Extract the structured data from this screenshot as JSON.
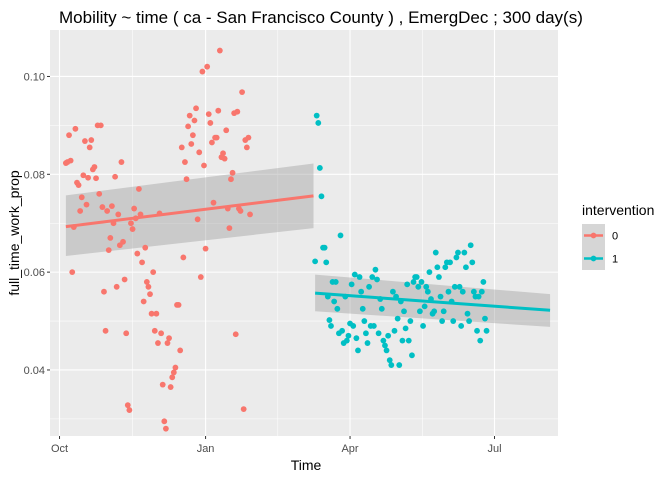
{
  "chart_data": {
    "type": "scatter",
    "title": "Mobility ~ time ( ca - San Francisco County ) , EmergDec ; 300  day(s)",
    "xlabel": "Time",
    "ylabel": "full_time_work_prop",
    "x_ticks": [
      {
        "label": "Oct",
        "date": "2019-10-01"
      },
      {
        "label": "Jan",
        "date": "2020-01-01"
      },
      {
        "label": "Apr",
        "date": "2020-04-01"
      },
      {
        "label": "Jul",
        "date": "2020-07-01"
      }
    ],
    "y_ticks": [
      {
        "label": "0.04",
        "value": 0.04
      },
      {
        "label": "0.06",
        "value": 0.06
      },
      {
        "label": "0.08",
        "value": 0.08
      },
      {
        "label": "0.10",
        "value": 0.1
      }
    ],
    "xlim": [
      "2019-09-25",
      "2020-08-10"
    ],
    "ylim": [
      0.0265,
      0.1095
    ],
    "grid": true,
    "legend_position": "right",
    "legend": {
      "title": "intervention",
      "entries": [
        {
          "label": "0",
          "color": "#F8766D"
        },
        {
          "label": "1",
          "color": "#00BFC4"
        }
      ]
    },
    "series": [
      {
        "name": "0",
        "color": "#F8766D",
        "trend": {
          "start": {
            "date": "2019-10-05",
            "y": 0.0693
          },
          "end": {
            "date": "2020-03-09",
            "y": 0.0756
          }
        },
        "band": {
          "start_lower": 0.0633,
          "start_upper": 0.0757,
          "end_lower": 0.069,
          "end_upper": 0.0822
        },
        "points": [
          [
            "2019-10-05",
            0.0823
          ],
          [
            "2019-10-06",
            0.0825
          ],
          [
            "2019-10-07",
            0.088
          ],
          [
            "2019-10-08",
            0.0828
          ],
          [
            "2019-10-09",
            0.06
          ],
          [
            "2019-10-10",
            0.0692
          ],
          [
            "2019-10-11",
            0.0893
          ],
          [
            "2019-10-12",
            0.0783
          ],
          [
            "2019-10-13",
            0.0778
          ],
          [
            "2019-10-14",
            0.0725
          ],
          [
            "2019-10-15",
            0.0753
          ],
          [
            "2019-10-16",
            0.0798
          ],
          [
            "2019-10-17",
            0.0868
          ],
          [
            "2019-10-18",
            0.0738
          ],
          [
            "2019-10-19",
            0.0793
          ],
          [
            "2019-10-20",
            0.0855
          ],
          [
            "2019-10-21",
            0.087
          ],
          [
            "2019-10-22",
            0.081
          ],
          [
            "2019-10-23",
            0.0815
          ],
          [
            "2019-10-24",
            0.0792
          ],
          [
            "2019-10-25",
            0.09
          ],
          [
            "2019-10-26",
            0.076
          ],
          [
            "2019-10-27",
            0.09
          ],
          [
            "2019-10-28",
            0.0733
          ],
          [
            "2019-10-29",
            0.056
          ],
          [
            "2019-10-30",
            0.048
          ],
          [
            "2019-10-31",
            0.0725
          ],
          [
            "2019-11-01",
            0.0645
          ],
          [
            "2019-11-02",
            0.067
          ],
          [
            "2019-11-03",
            0.0735
          ],
          [
            "2019-11-04",
            0.07
          ],
          [
            "2019-11-05",
            0.0795
          ],
          [
            "2019-11-06",
            0.057
          ],
          [
            "2019-11-07",
            0.0718
          ],
          [
            "2019-11-08",
            0.0655
          ],
          [
            "2019-11-09",
            0.0825
          ],
          [
            "2019-11-10",
            0.0662
          ],
          [
            "2019-11-11",
            0.0585
          ],
          [
            "2019-11-12",
            0.0475
          ],
          [
            "2019-11-13",
            0.0328
          ],
          [
            "2019-11-14",
            0.0318
          ],
          [
            "2019-11-15",
            0.07
          ],
          [
            "2019-11-16",
            0.0688
          ],
          [
            "2019-11-17",
            0.073
          ],
          [
            "2019-11-18",
            0.071
          ],
          [
            "2019-11-19",
            0.0638
          ],
          [
            "2019-11-20",
            0.077
          ],
          [
            "2019-11-21",
            0.0718
          ],
          [
            "2019-11-22",
            0.062
          ],
          [
            "2019-11-23",
            0.054
          ],
          [
            "2019-11-24",
            0.065
          ],
          [
            "2019-11-25",
            0.058
          ],
          [
            "2019-11-26",
            0.057
          ],
          [
            "2019-11-27",
            0.0555
          ],
          [
            "2019-11-28",
            0.0515
          ],
          [
            "2019-11-29",
            0.06
          ],
          [
            "2019-11-30",
            0.048
          ],
          [
            "2019-12-01",
            0.0515
          ],
          [
            "2019-12-02",
            0.0455
          ],
          [
            "2019-12-03",
            0.072
          ],
          [
            "2019-12-04",
            0.0475
          ],
          [
            "2019-12-05",
            0.037
          ],
          [
            "2019-12-06",
            0.0295
          ],
          [
            "2019-12-07",
            0.028
          ],
          [
            "2019-12-08",
            0.0455
          ],
          [
            "2019-12-09",
            0.0465
          ],
          [
            "2019-12-10",
            0.0365
          ],
          [
            "2019-12-11",
            0.0385
          ],
          [
            "2019-12-12",
            0.0395
          ],
          [
            "2019-12-13",
            0.0405
          ],
          [
            "2019-12-14",
            0.0533
          ],
          [
            "2019-12-15",
            0.0533
          ],
          [
            "2019-12-16",
            0.044
          ],
          [
            "2019-12-17",
            0.0855
          ],
          [
            "2019-12-18",
            0.063
          ],
          [
            "2019-12-19",
            0.0825
          ],
          [
            "2019-12-20",
            0.079
          ],
          [
            "2019-12-21",
            0.0898
          ],
          [
            "2019-12-22",
            0.092
          ],
          [
            "2019-12-23",
            0.0862
          ],
          [
            "2019-12-24",
            0.088
          ],
          [
            "2019-12-25",
            0.091
          ],
          [
            "2019-12-26",
            0.0935
          ],
          [
            "2019-12-27",
            0.0708
          ],
          [
            "2019-12-28",
            0.0845
          ],
          [
            "2019-12-29",
            0.059
          ],
          [
            "2019-12-30",
            0.101
          ],
          [
            "2019-12-31",
            0.0818
          ],
          [
            "2020-01-01",
            0.0648
          ],
          [
            "2020-01-02",
            0.102
          ],
          [
            "2020-01-03",
            0.0923
          ],
          [
            "2020-01-04",
            0.0905
          ],
          [
            "2020-01-05",
            0.0865
          ],
          [
            "2020-01-06",
            0.0742
          ],
          [
            "2020-01-07",
            0.0875
          ],
          [
            "2020-01-08",
            0.0875
          ],
          [
            "2020-01-09",
            0.093
          ],
          [
            "2020-01-10",
            0.1053
          ],
          [
            "2020-01-11",
            0.0835
          ],
          [
            "2020-01-12",
            0.0843
          ],
          [
            "2020-01-13",
            0.0832
          ],
          [
            "2020-01-14",
            0.089
          ],
          [
            "2020-01-15",
            0.073
          ],
          [
            "2020-01-16",
            0.069
          ],
          [
            "2020-01-17",
            0.079
          ],
          [
            "2020-01-18",
            0.0803
          ],
          [
            "2020-01-19",
            0.0925
          ],
          [
            "2020-01-20",
            0.0473
          ],
          [
            "2020-01-21",
            0.0928
          ],
          [
            "2020-01-22",
            0.073
          ],
          [
            "2020-01-23",
            0.0725
          ],
          [
            "2020-01-24",
            0.0968
          ],
          [
            "2020-01-25",
            0.032
          ],
          [
            "2020-01-26",
            0.087
          ],
          [
            "2020-01-27",
            0.0855
          ],
          [
            "2020-01-28",
            0.0875
          ],
          [
            "2020-01-29",
            0.0718
          ]
        ]
      },
      {
        "name": "1",
        "color": "#00BFC4",
        "trend": {
          "start": {
            "date": "2020-03-10",
            "y": 0.0557
          },
          "end": {
            "date": "2020-08-05",
            "y": 0.0522
          }
        },
        "band": {
          "start_lower": 0.052,
          "start_upper": 0.0595,
          "end_lower": 0.0488,
          "end_upper": 0.0555
        },
        "points": [
          [
            "2020-03-10",
            0.0622
          ],
          [
            "2020-03-11",
            0.092
          ],
          [
            "2020-03-12",
            0.0905
          ],
          [
            "2020-03-13",
            0.0813
          ],
          [
            "2020-03-14",
            0.0755
          ],
          [
            "2020-03-15",
            0.065
          ],
          [
            "2020-03-16",
            0.065
          ],
          [
            "2020-03-17",
            0.062
          ],
          [
            "2020-03-18",
            0.055
          ],
          [
            "2020-03-19",
            0.0502
          ],
          [
            "2020-03-20",
            0.049
          ],
          [
            "2020-03-21",
            0.058
          ],
          [
            "2020-03-22",
            0.054
          ],
          [
            "2020-03-23",
            0.058
          ],
          [
            "2020-03-24",
            0.0525
          ],
          [
            "2020-03-25",
            0.0475
          ],
          [
            "2020-03-26",
            0.0675
          ],
          [
            "2020-03-27",
            0.048
          ],
          [
            "2020-03-28",
            0.0455
          ],
          [
            "2020-03-29",
            0.055
          ],
          [
            "2020-03-30",
            0.046
          ],
          [
            "2020-03-31",
            0.047
          ],
          [
            "2020-04-01",
            0.0495
          ],
          [
            "2020-04-02",
            0.0575
          ],
          [
            "2020-04-03",
            0.049
          ],
          [
            "2020-04-04",
            0.0595
          ],
          [
            "2020-04-05",
            0.0465
          ],
          [
            "2020-04-06",
            0.044
          ],
          [
            "2020-04-07",
            0.059
          ],
          [
            "2020-04-08",
            0.056
          ],
          [
            "2020-04-09",
            0.0525
          ],
          [
            "2020-04-10",
            0.05
          ],
          [
            "2020-04-11",
            0.0475
          ],
          [
            "2020-04-12",
            0.0455
          ],
          [
            "2020-04-13",
            0.057
          ],
          [
            "2020-04-14",
            0.049
          ],
          [
            "2020-04-15",
            0.059
          ],
          [
            "2020-04-16",
            0.049
          ],
          [
            "2020-04-17",
            0.0605
          ],
          [
            "2020-04-18",
            0.0585
          ],
          [
            "2020-04-19",
            0.0475
          ],
          [
            "2020-04-20",
            0.0545
          ],
          [
            "2020-04-21",
            0.0525
          ],
          [
            "2020-04-22",
            0.046
          ],
          [
            "2020-04-23",
            0.045
          ],
          [
            "2020-04-24",
            0.044
          ],
          [
            "2020-04-25",
            0.047
          ],
          [
            "2020-04-26",
            0.042
          ],
          [
            "2020-04-27",
            0.041
          ],
          [
            "2020-04-28",
            0.056
          ],
          [
            "2020-04-29",
            0.048
          ],
          [
            "2020-04-30",
            0.055
          ],
          [
            "2020-05-01",
            0.0505
          ],
          [
            "2020-05-02",
            0.041
          ],
          [
            "2020-05-03",
            0.054
          ],
          [
            "2020-05-04",
            0.046
          ],
          [
            "2020-05-05",
            0.052
          ],
          [
            "2020-05-06",
            0.0485
          ],
          [
            "2020-05-07",
            0.0575
          ],
          [
            "2020-05-08",
            0.046
          ],
          [
            "2020-05-09",
            0.05
          ],
          [
            "2020-05-10",
            0.043
          ],
          [
            "2020-05-11",
            0.058
          ],
          [
            "2020-05-12",
            0.059
          ],
          [
            "2020-05-13",
            0.059
          ],
          [
            "2020-05-14",
            0.057
          ],
          [
            "2020-05-15",
            0.052
          ],
          [
            "2020-05-16",
            0.058
          ],
          [
            "2020-05-17",
            0.049
          ],
          [
            "2020-05-18",
            0.053
          ],
          [
            "2020-05-19",
            0.057
          ],
          [
            "2020-05-20",
            0.056
          ],
          [
            "2020-05-21",
            0.06
          ],
          [
            "2020-05-22",
            0.0545
          ],
          [
            "2020-05-23",
            0.0515
          ],
          [
            "2020-05-24",
            0.052
          ],
          [
            "2020-05-25",
            0.064
          ],
          [
            "2020-05-26",
            0.061
          ],
          [
            "2020-05-27",
            0.059
          ],
          [
            "2020-05-28",
            0.055
          ],
          [
            "2020-05-29",
            0.05
          ],
          [
            "2020-05-30",
            0.052
          ],
          [
            "2020-05-31",
            0.061
          ],
          [
            "2020-06-01",
            0.062
          ],
          [
            "2020-06-02",
            0.056
          ],
          [
            "2020-06-03",
            0.062
          ],
          [
            "2020-06-04",
            0.054
          ],
          [
            "2020-06-05",
            0.05
          ],
          [
            "2020-06-06",
            0.057
          ],
          [
            "2020-06-07",
            0.063
          ],
          [
            "2020-06-08",
            0.064
          ],
          [
            "2020-06-09",
            0.057
          ],
          [
            "2020-06-10",
            0.049
          ],
          [
            "2020-06-11",
            0.056
          ],
          [
            "2020-06-12",
            0.064
          ],
          [
            "2020-06-13",
            0.061
          ],
          [
            "2020-06-14",
            0.0515
          ],
          [
            "2020-06-15",
            0.05
          ],
          [
            "2020-06-16",
            0.0655
          ],
          [
            "2020-06-17",
            0.062
          ],
          [
            "2020-06-18",
            0.056
          ],
          [
            "2020-06-19",
            0.055
          ],
          [
            "2020-06-20",
            0.048
          ],
          [
            "2020-06-21",
            0.055
          ],
          [
            "2020-06-22",
            0.046
          ],
          [
            "2020-06-23",
            0.056
          ],
          [
            "2020-06-24",
            0.058
          ],
          [
            "2020-06-25",
            0.0505
          ],
          [
            "2020-06-26",
            0.048
          ]
        ]
      }
    ]
  }
}
